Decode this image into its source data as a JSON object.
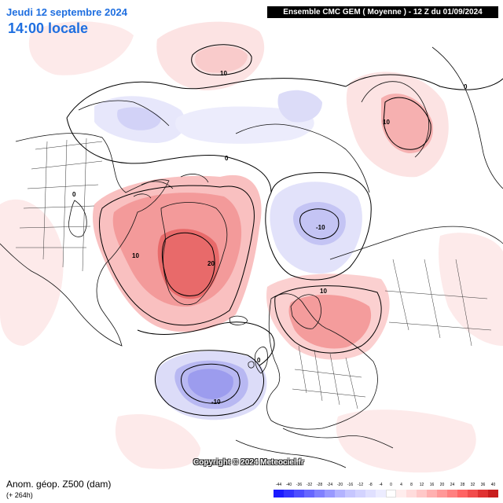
{
  "header": {
    "date_label": "Jeudi 12 septembre 2024",
    "time_label": "14:00 locale",
    "model_run_label": "Ensemble CMC GEM  ( Moyenne )  -  12 Z du 01/09/2024"
  },
  "footer": {
    "parameter_label": "Anom. géop. Z500 (dam)",
    "lead_time_label": "(+ 264h)",
    "copyright_label": "Copyright © 2024 Meteociel.fr"
  },
  "contour_labels": {
    "ridge_north_pacific": "10",
    "zero_alaska": "0",
    "zero_top_right": "0",
    "ridge_siberia": "10",
    "zero_north_america": "0",
    "ridge_canada": "10",
    "ridge_greenland": "20",
    "trough_arctic": "-10",
    "ridge_europe": "10",
    "zero_atlantic": "0",
    "trough_atlantic": "-10"
  },
  "legend": {
    "labels": [
      "-44",
      "-40",
      "-36",
      "-32",
      "-28",
      "-24",
      "-20",
      "-16",
      "-12",
      "-8",
      "-4",
      "0",
      "4",
      "8",
      "12",
      "16",
      "20",
      "24",
      "28",
      "32",
      "36",
      "40"
    ],
    "colors": [
      "#1a1aff",
      "#3333ff",
      "#4d4dff",
      "#6666ff",
      "#8080ff",
      "#9999ff",
      "#b3b3ff",
      "#c6c6ff",
      "#d3d3ff",
      "#e0e0ff",
      "#ececff",
      "#ffffff",
      "#ffeded",
      "#ffdcdc",
      "#ffc8c8",
      "#ffb0b0",
      "#ff9898",
      "#ff8080",
      "#ff6464",
      "#f24c4c",
      "#e03232",
      "#c81e1e"
    ]
  },
  "colors": {
    "positive_light": "#fce3e3",
    "positive_medium": "#f9b8b8",
    "positive_strong": "#f38a8a",
    "positive_peak": "#e85c5c",
    "negative_light": "#e7e7fb",
    "negative_medium": "#c9c9f5",
    "negative_strong": "#9f9ff0",
    "title_blue": "#1f6fe0"
  }
}
